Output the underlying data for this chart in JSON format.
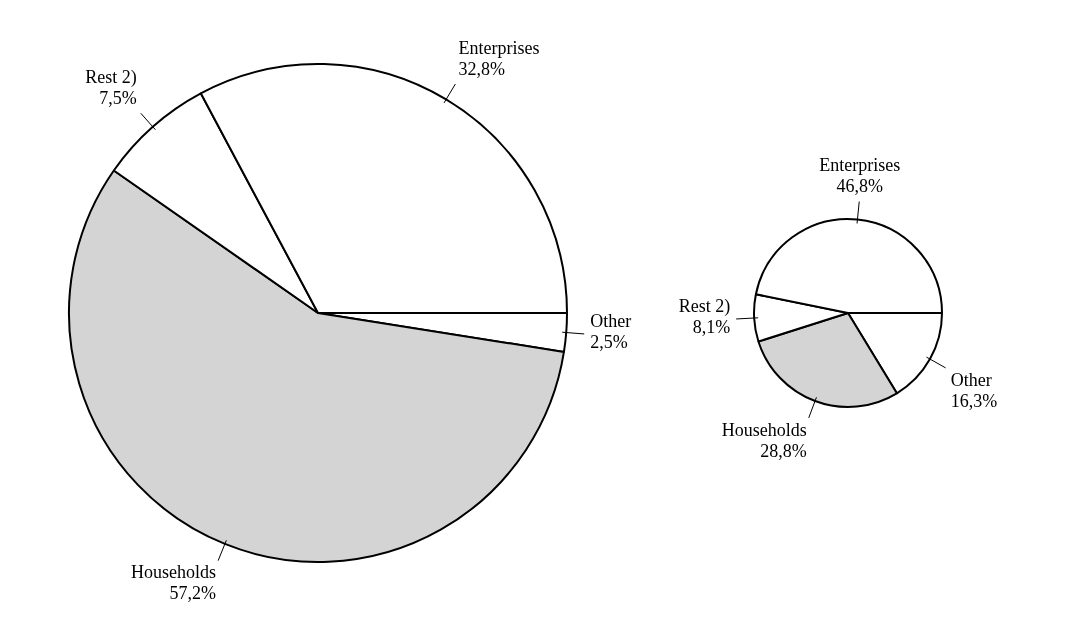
{
  "chart_data": [
    {
      "type": "pie",
      "categories": [
        "Other",
        "Households",
        "Rest 2)",
        "Enterprises"
      ],
      "values": [
        2.5,
        57.2,
        7.5,
        32.8
      ],
      "value_labels": [
        "2,5%",
        "57,2%",
        "7,5%",
        "32,8%"
      ],
      "colors": [
        "#ffffff",
        "#d4d4d4",
        "#ffffff",
        "#ffffff"
      ]
    },
    {
      "type": "pie",
      "categories": [
        "Other",
        "Households",
        "Rest 2)",
        "Enterprises"
      ],
      "values": [
        16.3,
        28.8,
        8.1,
        46.8
      ],
      "value_labels": [
        "16,3%",
        "28,8%",
        "8,1%",
        "46,8%"
      ],
      "colors": [
        "#ffffff",
        "#d4d4d4",
        "#ffffff",
        "#ffffff"
      ]
    }
  ]
}
